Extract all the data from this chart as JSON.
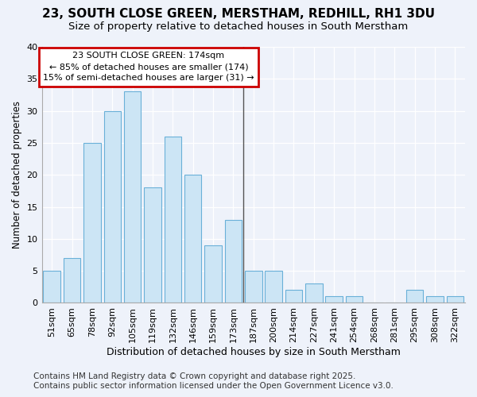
{
  "title_line1": "23, SOUTH CLOSE GREEN, MERSTHAM, REDHILL, RH1 3DU",
  "title_line2": "Size of property relative to detached houses in South Merstham",
  "xlabel": "Distribution of detached houses by size in South Merstham",
  "ylabel": "Number of detached properties",
  "categories": [
    "51sqm",
    "65sqm",
    "78sqm",
    "92sqm",
    "105sqm",
    "119sqm",
    "132sqm",
    "146sqm",
    "159sqm",
    "173sqm",
    "187sqm",
    "200sqm",
    "214sqm",
    "227sqm",
    "241sqm",
    "254sqm",
    "268sqm",
    "281sqm",
    "295sqm",
    "308sqm",
    "322sqm"
  ],
  "values": [
    5,
    7,
    25,
    30,
    33,
    18,
    26,
    20,
    9,
    13,
    5,
    5,
    2,
    3,
    1,
    1,
    0,
    0,
    2,
    1,
    1
  ],
  "bar_color": "#cce5f5",
  "bar_edge_color": "#6ab0d8",
  "annotation_text": "23 SOUTH CLOSE GREEN: 174sqm\n← 85% of detached houses are smaller (174)\n15% of semi-detached houses are larger (31) →",
  "annotation_box_facecolor": "#ffffff",
  "annotation_box_edgecolor": "#cc0000",
  "vline_color": "#555555",
  "ylim": [
    0,
    40
  ],
  "yticks": [
    0,
    5,
    10,
    15,
    20,
    25,
    30,
    35,
    40
  ],
  "background_color": "#eef2fa",
  "grid_color": "#ffffff",
  "footer_line1": "Contains HM Land Registry data © Crown copyright and database right 2025.",
  "footer_line2": "Contains public sector information licensed under the Open Government Licence v3.0.",
  "footer_fontsize": 7.5,
  "title_fontsize1": 11,
  "title_fontsize2": 9.5,
  "xlabel_fontsize": 9,
  "ylabel_fontsize": 8.5,
  "tick_fontsize": 8,
  "annot_fontsize": 8,
  "vline_x_index": 9
}
